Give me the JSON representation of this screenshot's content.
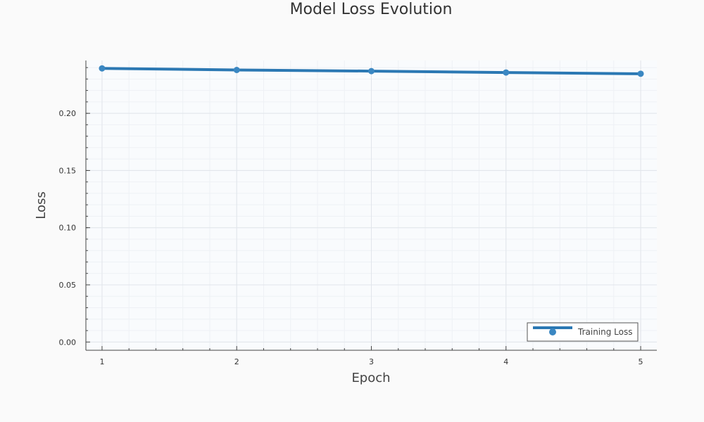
{
  "chart_data": {
    "type": "line",
    "title": "Model Loss Evolution",
    "xlabel": "Epoch",
    "ylabel": "Loss",
    "x": [
      1,
      2,
      3,
      4,
      5
    ],
    "xticks": [
      "1",
      "2",
      "3",
      "4",
      "5"
    ],
    "xlim": [
      0.88,
      5.12
    ],
    "yticks": [
      "0.00",
      "0.05",
      "0.10",
      "0.15",
      "0.20"
    ],
    "ytick_values": [
      0.0,
      0.05,
      0.1,
      0.15,
      0.2
    ],
    "ylim": [
      -0.0072,
      0.2462
    ],
    "grid": true,
    "legend_position": "bottom-right",
    "series": [
      {
        "name": "Training Loss",
        "values": [
          0.2393,
          0.2379,
          0.2369,
          0.2357,
          0.2346
        ],
        "color": "#2b78b3"
      }
    ],
    "colors": {
      "background": "#fafafa",
      "plot_background": "#f9fbfd",
      "grid": "#e4e8ee",
      "axis": "#444444",
      "text": "#333333"
    }
  }
}
